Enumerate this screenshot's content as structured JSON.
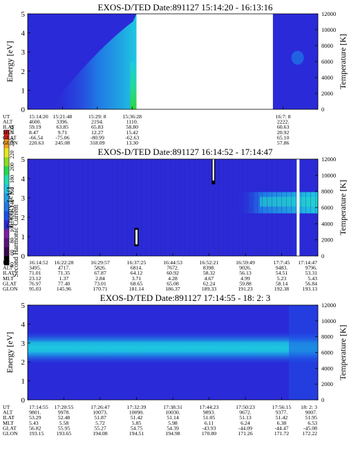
{
  "colors": {
    "background": "#ffffff",
    "axis": "#000000",
    "spectrogram_low": "#2a2ad8",
    "spectrogram_mid": "#22c0e0",
    "spectrogram_high": "#2fd640",
    "gap": "#ffffff"
  },
  "colorbar": {
    "label": "Second Harmonic Current",
    "ticks": [
      "40",
      "60",
      "80",
      "100",
      "120",
      "140",
      "160",
      "180",
      "200",
      "220",
      "240",
      "250"
    ],
    "colors": [
      "#000000",
      "#3a0a4a",
      "#5a1478",
      "#7a1ea0",
      "#2a2ad8",
      "#1e50e6",
      "#1e7ae8",
      "#1ea0e6",
      "#1ec8e0",
      "#1ee0b4",
      "#22dc50",
      "#8cdc1e",
      "#e6e61e",
      "#f0a01e",
      "#e01e1e"
    ]
  },
  "chart_data": [
    {
      "type": "heatmap",
      "title": "EXOS-D/TED   Date:891127   15:14:20 - 16:13:16",
      "ylabel": "Energy [eV]",
      "y2label": "Temperature [K]",
      "ylim": [
        0,
        5
      ],
      "y2lim": [
        0,
        12000
      ],
      "yticks": [
        "0",
        "1",
        "2",
        "3",
        "4",
        "5"
      ],
      "y2ticks": [
        "0",
        "2000",
        "4000",
        "6000",
        "8000",
        "10000",
        "12000"
      ],
      "data_intervals": [
        [
          0,
          0.375
        ],
        [
          0.845,
          1.0
        ]
      ],
      "ephemeris_labels": [
        "UT",
        "ALT",
        "ILAT",
        "MLT",
        "GLAT",
        "GLON"
      ],
      "ephemeris": [
        {
          "at": 0.0,
          "values": [
            "15:14:20",
            "4600.",
            "59.19",
            "8.47",
            "-66.54",
            "220.63"
          ]
        },
        {
          "at": 0.12,
          "values": [
            "15:21:48",
            "3396.",
            "63.85",
            "9.71",
            "-75.06",
            "245.08"
          ]
        },
        {
          "at": 0.24,
          "values": [
            "15:29: 8",
            "2194.",
            "65.83",
            "12.27",
            "-80.99",
            "318.09"
          ]
        },
        {
          "at": 0.36,
          "values": [
            "15:36:28",
            "1110.",
            "58.80",
            "15.42",
            "-62.63",
            "13.30"
          ]
        },
        {
          "at": 0.88,
          "values": [
            "16:7: 8",
            "2222.",
            "60.63",
            "20.92",
            "65.10",
            "57.86"
          ]
        }
      ]
    },
    {
      "type": "heatmap",
      "title": "EXOS-D/TED   Date:891127   16:14:52 - 17:14:47",
      "ylabel": "Energy [eV]",
      "y2label": "Temperature [K]",
      "ylim": [
        0,
        5
      ],
      "y2lim": [
        0,
        12000
      ],
      "yticks": [
        "0",
        "1",
        "2",
        "3",
        "4",
        "5"
      ],
      "y2ticks": [
        "0",
        "2000",
        "4000",
        "6000",
        "8000",
        "10000",
        "12000"
      ],
      "ephemeris_labels": [
        "UT",
        "ALT",
        "ILAT",
        "MLT",
        "GLAT",
        "GLON"
      ],
      "ephemeris": [
        {
          "at": 0.0,
          "values": [
            "16:14:52",
            "3495.",
            "71.01",
            "23.12",
            "76.97",
            "95.03"
          ]
        },
        {
          "at": 0.125,
          "values": [
            "16:22:28",
            "4717.",
            "71.35",
            "1.37",
            "77.40",
            "145.96"
          ]
        },
        {
          "at": 0.25,
          "values": [
            "16:29:57",
            "5826.",
            "67.87",
            "2.84",
            "73.01",
            "170.71"
          ]
        },
        {
          "at": 0.375,
          "values": [
            "16:37:25",
            "6814.",
            "64.12",
            "3.71",
            "68.65",
            "181.14"
          ]
        },
        {
          "at": 0.5,
          "values": [
            "16:44:53",
            "7672.",
            "60.92",
            "4.28",
            "65.08",
            "186.37"
          ]
        },
        {
          "at": 0.625,
          "values": [
            "16:52:21",
            "8398.",
            "58.32",
            "4.67",
            "62.24",
            "189.33"
          ]
        },
        {
          "at": 0.75,
          "values": [
            "16:59:49",
            "9026.",
            "56.13",
            "4.99",
            "59.88",
            "191.23"
          ]
        },
        {
          "at": 0.875,
          "values": [
            "17:7:45",
            "9483.",
            "54.51",
            "5.23",
            "58.14",
            "192.38"
          ]
        },
        {
          "at": 1.0,
          "values": [
            "17:14:47",
            "9796.",
            "53.31",
            "5.43",
            "56.84",
            "193.13"
          ]
        }
      ]
    },
    {
      "type": "heatmap",
      "title": "EXOS-D/TED   Date:891127   17:14:55 - 18: 2: 3",
      "ylabel": "Energy [eV]",
      "y2label": "Temperature [K]",
      "ylim": [
        0,
        5
      ],
      "y2lim": [
        0,
        12000
      ],
      "yticks": [
        "0",
        "1",
        "2",
        "3",
        "4",
        "5"
      ],
      "y2ticks": [
        "0",
        "2000",
        "4000",
        "6000",
        "8000",
        "10000",
        "12000"
      ],
      "ephemeris_labels": [
        "UT",
        "ALT",
        "ILAT",
        "MLT",
        "GLAT",
        "GLON"
      ],
      "ephemeris": [
        {
          "at": 0.0,
          "values": [
            "17:14:55",
            "9801.",
            "53.29",
            "5.43",
            "56.82",
            "193.15"
          ]
        },
        {
          "at": 0.125,
          "values": [
            "17:20:55",
            "9978.",
            "52.48",
            "5.58",
            "55.95",
            "193.65"
          ]
        },
        {
          "at": 0.25,
          "values": [
            "17:26:47",
            "10073.",
            "51.87",
            "5.72",
            "55.27",
            "194.08"
          ]
        },
        {
          "at": 0.375,
          "values": [
            "17:32:39",
            "10090.",
            "51.42",
            "5.85",
            "54.75",
            "194.51"
          ]
        },
        {
          "at": 0.5,
          "values": [
            "17:38:31",
            "10030.",
            "51.14",
            "5.98",
            "54.39",
            "194.98"
          ]
        },
        {
          "at": 0.625,
          "values": [
            "17:44:23",
            "9893.",
            "51.05",
            "6.11",
            "-43.93",
            "170.80"
          ]
        },
        {
          "at": 0.75,
          "values": [
            "17:50:23",
            "9672.",
            "51.13",
            "6.24",
            "-44.09",
            "171.26"
          ]
        },
        {
          "at": 0.875,
          "values": [
            "17:56:15",
            "9377.",
            "51.42",
            "6.38",
            "-44.47",
            "171.72"
          ]
        },
        {
          "at": 1.0,
          "values": [
            "18: 2: 3",
            "9007.",
            "51.95",
            "6.53",
            "-45.08",
            "172.22"
          ]
        }
      ]
    }
  ]
}
